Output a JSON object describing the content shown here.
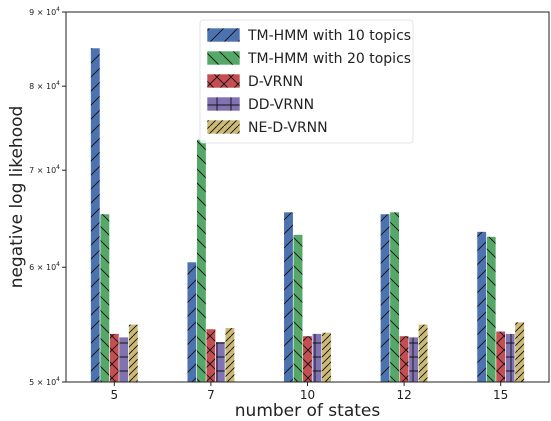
{
  "chart_data": {
    "type": "bar",
    "categories": [
      "5",
      "7",
      "10",
      "12",
      "15"
    ],
    "xlabel": "number of states",
    "ylabel": "negative log likehood",
    "yscale": "log",
    "ylim": [
      50000,
      90000
    ],
    "yticks": [
      {
        "value": 50000,
        "label": "5 × 10",
        "exp": "4"
      },
      {
        "value": 60000,
        "label": "6 × 10",
        "exp": "4"
      },
      {
        "value": 70000,
        "label": "7 × 10",
        "exp": "4"
      },
      {
        "value": 80000,
        "label": "8 × 10",
        "exp": "4"
      },
      {
        "value": 90000,
        "label": "9 × 10",
        "exp": "4"
      }
    ],
    "grid": false,
    "legend_position": "top-center",
    "series": [
      {
        "name": "TM-HMM with 10 topics",
        "color": "#4c72b0",
        "hatch": "/",
        "values": [
          85000,
          60500,
          65500,
          65300,
          63500
        ]
      },
      {
        "name": "TM-HMM with 20 topics",
        "color": "#55a868",
        "hatch": "\\",
        "values": [
          65300,
          73500,
          63200,
          65500,
          63000
        ]
      },
      {
        "name": "D-VRNN",
        "color": "#c44e52",
        "hatch": "x",
        "values": [
          54000,
          54400,
          53800,
          53800,
          54200
        ]
      },
      {
        "name": "DD-VRNN",
        "color": "#8172b2",
        "hatch": "+",
        "values": [
          53700,
          53300,
          54000,
          53700,
          54000
        ]
      },
      {
        "name": "NE-D-VRNN",
        "color": "#ccb974",
        "hatch": "//",
        "values": [
          54800,
          54500,
          54100,
          54800,
          55000
        ]
      }
    ]
  }
}
